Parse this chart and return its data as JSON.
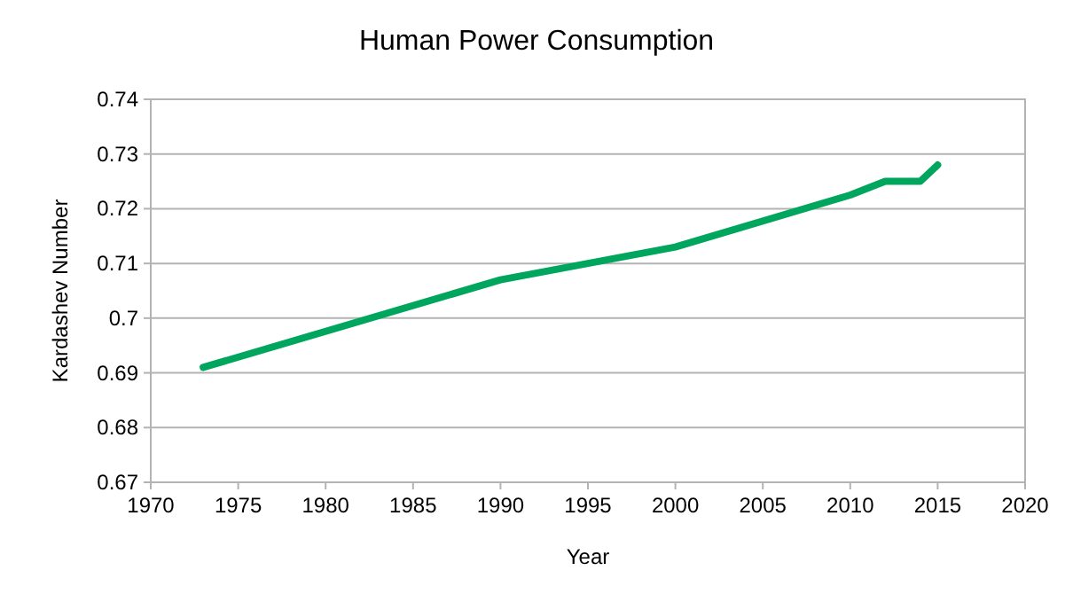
{
  "chart_data": {
    "type": "line",
    "title": "Human Power Consumption",
    "xlabel": "Year",
    "ylabel": "Kardashev Number",
    "series": [
      {
        "color": "#00a65d",
        "x": [
          1973,
          1990,
          2000,
          2010,
          2012,
          2014,
          2015
        ],
        "values": [
          0.691,
          0.707,
          0.713,
          0.7225,
          0.725,
          0.725,
          0.728
        ]
      }
    ],
    "xlim": [
      1970,
      2020
    ],
    "xticks": [
      1970,
      1975,
      1980,
      1985,
      1990,
      1995,
      2000,
      2005,
      2010,
      2015,
      2020
    ],
    "ylim": [
      0.67,
      0.74
    ],
    "yticks": [
      {
        "value": 0.67,
        "label": "0.67"
      },
      {
        "value": 0.68,
        "label": "0.68"
      },
      {
        "value": 0.69,
        "label": "0.69"
      },
      {
        "value": 0.7,
        "label": "0.7"
      },
      {
        "value": 0.71,
        "label": "0.71"
      },
      {
        "value": 0.72,
        "label": "0.72"
      },
      {
        "value": 0.73,
        "label": "0.73"
      },
      {
        "value": 0.74,
        "label": "0.74"
      }
    ],
    "grid": "y",
    "marker": "none",
    "line_style": "solid"
  }
}
